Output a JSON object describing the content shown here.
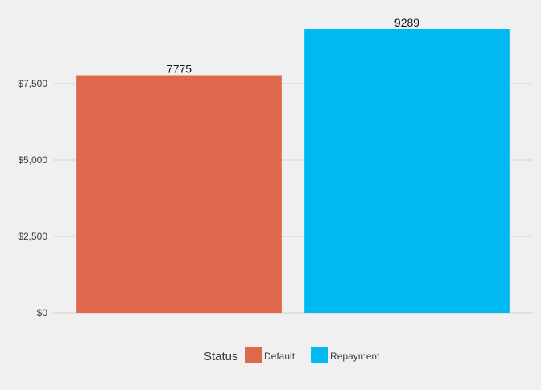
{
  "chart_data": {
    "type": "bar",
    "categories": [
      "Default",
      "Repayment"
    ],
    "values": [
      7775,
      9289
    ],
    "data_labels": [
      "7775",
      "9289"
    ],
    "title": "",
    "xlabel": "",
    "ylabel": "",
    "ylim": [
      0,
      9289
    ],
    "y_ticks": [
      0,
      2500,
      5000,
      7500
    ],
    "y_tick_labels": [
      "$0",
      "$2,500",
      "$5,000",
      "$7,500"
    ],
    "grid": "horizontal",
    "x_axis_labels_shown": false,
    "legend": {
      "title": "Status",
      "position": "bottom",
      "entries": [
        "Default",
        "Repayment"
      ]
    },
    "colors": {
      "Default": "#df674c",
      "Repayment": "#00b9f1",
      "background": "#f0f0f0",
      "grid": "#d2d2d2",
      "text": "#3c3c3c"
    }
  }
}
